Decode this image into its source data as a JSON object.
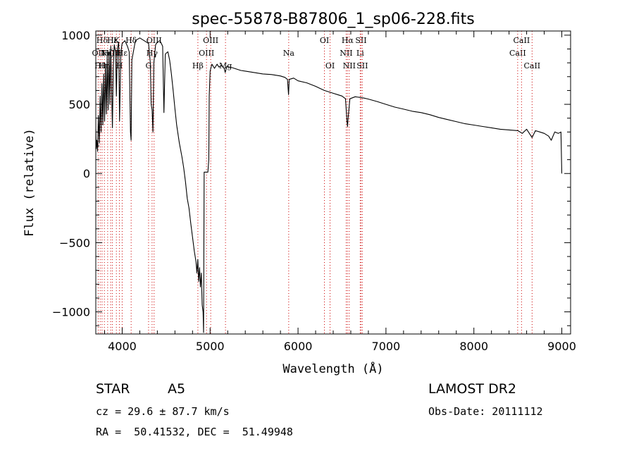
{
  "chart_data": {
    "type": "line",
    "title": "spec-55878-B87806_1_sp06-228.fits",
    "xlabel": "Wavelength (Å)",
    "ylabel": "Flux (relative)",
    "xlim": [
      3700,
      9100
    ],
    "ylim": [
      -1160,
      1030
    ],
    "xticks": [
      4000,
      5000,
      6000,
      7000,
      8000,
      9000
    ],
    "yticks": [
      -1000,
      -500,
      0,
      500,
      1000
    ],
    "line_color": "#000000",
    "marker_line_color": "#cc0000",
    "series": [
      {
        "points": [
          [
            3700,
            320
          ],
          [
            3705,
            180
          ],
          [
            3712,
            240
          ],
          [
            3720,
            160
          ],
          [
            3730,
            420
          ],
          [
            3740,
            220
          ],
          [
            3750,
            560
          ],
          [
            3760,
            300
          ],
          [
            3770,
            650
          ],
          [
            3780,
            350
          ],
          [
            3790,
            720
          ],
          [
            3800,
            380
          ],
          [
            3810,
            790
          ],
          [
            3820,
            430
          ],
          [
            3830,
            850
          ],
          [
            3840,
            460
          ],
          [
            3850,
            880
          ],
          [
            3860,
            500
          ],
          [
            3870,
            920
          ],
          [
            3880,
            600
          ],
          [
            3889,
            330
          ],
          [
            3898,
            750
          ],
          [
            3910,
            930
          ],
          [
            3925,
            880
          ],
          [
            3934,
            560
          ],
          [
            3945,
            900
          ],
          [
            3960,
            950
          ],
          [
            3970,
            380
          ],
          [
            3985,
            880
          ],
          [
            4000,
            940
          ],
          [
            4030,
            960
          ],
          [
            4060,
            920
          ],
          [
            4080,
            880
          ],
          [
            4094,
            300
          ],
          [
            4101,
            240
          ],
          [
            4110,
            820
          ],
          [
            4150,
            960
          ],
          [
            4200,
            980
          ],
          [
            4250,
            960
          ],
          [
            4300,
            940
          ],
          [
            4320,
            800
          ],
          [
            4330,
            500
          ],
          [
            4340,
            460
          ],
          [
            4350,
            300
          ],
          [
            4360,
            800
          ],
          [
            4380,
            930
          ],
          [
            4400,
            950
          ],
          [
            4430,
            960
          ],
          [
            4460,
            920
          ],
          [
            4475,
            440
          ],
          [
            4490,
            860
          ],
          [
            4500,
            870
          ],
          [
            4520,
            880
          ],
          [
            4540,
            820
          ],
          [
            4560,
            720
          ],
          [
            4580,
            600
          ],
          [
            4600,
            470
          ],
          [
            4620,
            350
          ],
          [
            4650,
            220
          ],
          [
            4680,
            120
          ],
          [
            4700,
            40
          ],
          [
            4720,
            -60
          ],
          [
            4740,
            -180
          ],
          [
            4760,
            -250
          ],
          [
            4780,
            -360
          ],
          [
            4800,
            -460
          ],
          [
            4820,
            -560
          ],
          [
            4840,
            -640
          ],
          [
            4850,
            -720
          ],
          [
            4860,
            -620
          ],
          [
            4870,
            -780
          ],
          [
            4880,
            -680
          ],
          [
            4890,
            -820
          ],
          [
            4900,
            -720
          ],
          [
            4910,
            -950
          ],
          [
            4920,
            -1000
          ],
          [
            4926,
            -1150
          ],
          [
            4932,
            10
          ],
          [
            4950,
            10
          ],
          [
            4965,
            10
          ],
          [
            4975,
            10
          ],
          [
            4985,
            100
          ],
          [
            4990,
            560
          ],
          [
            5000,
            740
          ],
          [
            5020,
            790
          ],
          [
            5050,
            760
          ],
          [
            5080,
            790
          ],
          [
            5100,
            770
          ],
          [
            5130,
            780
          ],
          [
            5160,
            760
          ],
          [
            5172,
            730
          ],
          [
            5190,
            775
          ],
          [
            5250,
            765
          ],
          [
            5300,
            755
          ],
          [
            5350,
            745
          ],
          [
            5400,
            740
          ],
          [
            5500,
            730
          ],
          [
            5600,
            720
          ],
          [
            5700,
            715
          ],
          [
            5800,
            705
          ],
          [
            5850,
            695
          ],
          [
            5880,
            680
          ],
          [
            5892,
            570
          ],
          [
            5900,
            680
          ],
          [
            5950,
            690
          ],
          [
            6000,
            670
          ],
          [
            6100,
            655
          ],
          [
            6200,
            630
          ],
          [
            6250,
            615
          ],
          [
            6300,
            600
          ],
          [
            6350,
            590
          ],
          [
            6400,
            580
          ],
          [
            6450,
            570
          ],
          [
            6500,
            560
          ],
          [
            6540,
            540
          ],
          [
            6556,
            380
          ],
          [
            6563,
            340
          ],
          [
            6570,
            400
          ],
          [
            6590,
            540
          ],
          [
            6650,
            555
          ],
          [
            6700,
            550
          ],
          [
            6750,
            545
          ],
          [
            6800,
            538
          ],
          [
            6900,
            520
          ],
          [
            7000,
            500
          ],
          [
            7100,
            480
          ],
          [
            7200,
            465
          ],
          [
            7300,
            450
          ],
          [
            7400,
            440
          ],
          [
            7500,
            425
          ],
          [
            7600,
            405
          ],
          [
            7700,
            390
          ],
          [
            7800,
            375
          ],
          [
            7900,
            360
          ],
          [
            8000,
            350
          ],
          [
            8100,
            340
          ],
          [
            8200,
            330
          ],
          [
            8300,
            320
          ],
          [
            8400,
            315
          ],
          [
            8500,
            310
          ],
          [
            8550,
            290
          ],
          [
            8600,
            320
          ],
          [
            8662,
            260
          ],
          [
            8700,
            310
          ],
          [
            8750,
            300
          ],
          [
            8800,
            290
          ],
          [
            8850,
            270
          ],
          [
            8880,
            240
          ],
          [
            8920,
            300
          ],
          [
            8960,
            290
          ],
          [
            8990,
            300
          ],
          [
            9000,
            0
          ]
        ]
      }
    ],
    "line_markers": [
      {
        "wavelength": 3727,
        "labels": [
          {
            "text": "OII",
            "tier": 2
          }
        ]
      },
      {
        "wavelength": 3750,
        "labels": [
          {
            "text": "Hθ",
            "tier": 3
          }
        ]
      },
      {
        "wavelength": 3771,
        "labels": [
          {
            "text": "Hδ",
            "tier": 1
          }
        ]
      },
      {
        "wavelength": 3798,
        "labels": [
          {
            "text": "Hη",
            "tier": 3
          }
        ]
      },
      {
        "wavelength": 3835,
        "labels": [
          {
            "text": "Hζ",
            "tier": 2
          }
        ]
      },
      {
        "wavelength": 3869,
        "labels": [
          {
            "text": "NeIII",
            "tier": 2
          }
        ]
      },
      {
        "wavelength": 3889,
        "labels": [
          {
            "text": "Hε",
            "tier": 1
          }
        ]
      },
      {
        "wavelength": 3934,
        "labels": [
          {
            "text": "K",
            "tier": 1
          }
        ]
      },
      {
        "wavelength": 3968,
        "labels": [
          {
            "text": "H",
            "tier": 3
          }
        ]
      },
      {
        "wavelength": 4000,
        "labels": [
          {
            "text": "Hε",
            "tier": 2
          }
        ]
      },
      {
        "wavelength": 4102,
        "labels": [
          {
            "text": "Hδ",
            "tier": 1
          }
        ]
      },
      {
        "wavelength": 4300,
        "labels": [
          {
            "text": "G",
            "tier": 3
          }
        ]
      },
      {
        "wavelength": 4340,
        "labels": [
          {
            "text": "Hγ",
            "tier": 2
          }
        ]
      },
      {
        "wavelength": 4363,
        "labels": [
          {
            "text": "OIII",
            "tier": 1
          }
        ]
      },
      {
        "wavelength": 4861,
        "labels": [
          {
            "text": "Hβ",
            "tier": 3
          }
        ]
      },
      {
        "wavelength": 4959,
        "labels": [
          {
            "text": "OIII",
            "tier": 2
          }
        ]
      },
      {
        "wavelength": 5007,
        "labels": [
          {
            "text": "OIII",
            "tier": 1
          }
        ]
      },
      {
        "wavelength": 5175,
        "labels": [
          {
            "text": "Mg",
            "tier": 3
          }
        ]
      },
      {
        "wavelength": 5894,
        "labels": [
          {
            "text": "Na",
            "tier": 2
          }
        ]
      },
      {
        "wavelength": 6300,
        "labels": [
          {
            "text": "OI",
            "tier": 1
          }
        ]
      },
      {
        "wavelength": 6364,
        "labels": [
          {
            "text": "OI",
            "tier": 3
          }
        ]
      },
      {
        "wavelength": 6548,
        "labels": [
          {
            "text": "NII",
            "tier": 2
          }
        ]
      },
      {
        "wavelength": 6563,
        "labels": [
          {
            "text": "Hα",
            "tier": 1
          }
        ]
      },
      {
        "wavelength": 6583,
        "labels": [
          {
            "text": "NII",
            "tier": 3
          }
        ]
      },
      {
        "wavelength": 6707,
        "labels": [
          {
            "text": "Li",
            "tier": 2
          }
        ]
      },
      {
        "wavelength": 6716,
        "labels": [
          {
            "text": "SII",
            "tier": 1
          }
        ]
      },
      {
        "wavelength": 6731,
        "labels": [
          {
            "text": "SII",
            "tier": 3
          }
        ]
      },
      {
        "wavelength": 8498,
        "labels": [
          {
            "text": "CaII",
            "tier": 2
          }
        ]
      },
      {
        "wavelength": 8542,
        "labels": [
          {
            "text": "CaII",
            "tier": 1
          }
        ]
      },
      {
        "wavelength": 8662,
        "labels": [
          {
            "text": "CaII",
            "tier": 3
          }
        ]
      }
    ]
  },
  "info": {
    "class_label": "STAR",
    "subclass_label": "A5",
    "survey_label": "LAMOST DR2",
    "cz_text": "cz = 29.6 ± 87.7 km/s",
    "obs_date_text": "Obs-Date: 20111112",
    "coords_text": "RA =  50.41532, DEC =  51.49948"
  }
}
